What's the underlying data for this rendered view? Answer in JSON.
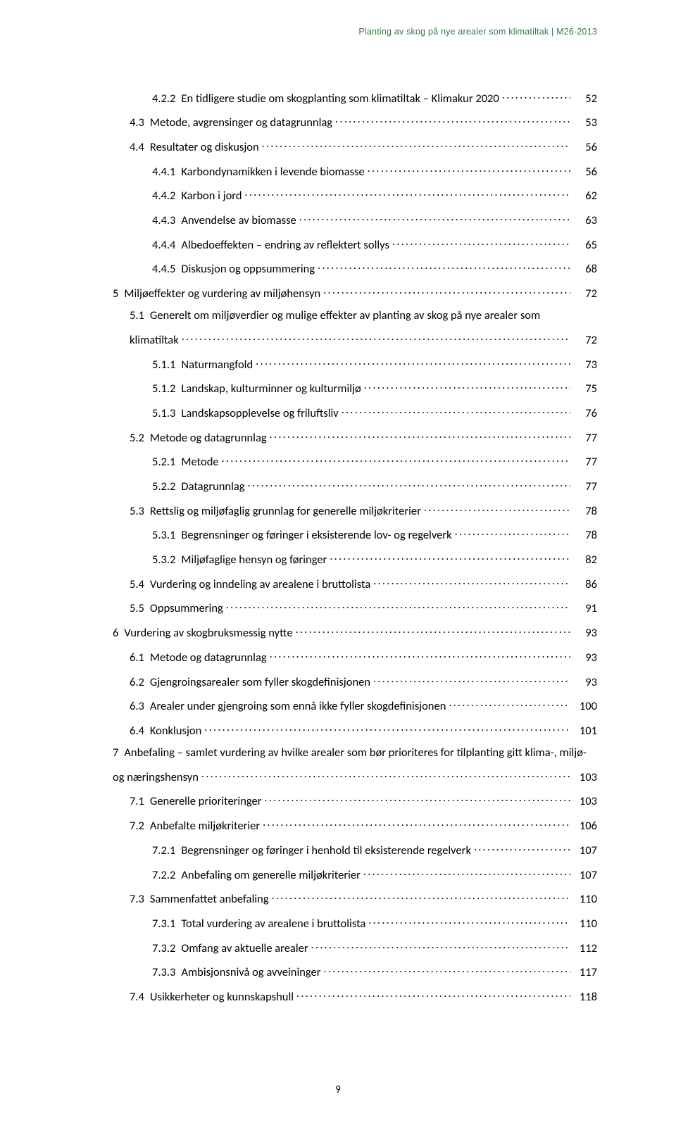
{
  "header": {
    "text": "Planting av skog på nye arealer som klimatiltak  |  M26-2013",
    "color": "#3a7840"
  },
  "pageNumber": "9",
  "colors": {
    "text": "#000000",
    "background": "#ffffff"
  },
  "toc": [
    {
      "lvl": 3,
      "num": "4.2.2",
      "title": "En tidligere studie om skogplanting som klimatiltak – Klimakur 2020",
      "page": "52"
    },
    {
      "lvl": 2,
      "num": "4.3",
      "title": "Metode, avgrensinger og datagrunnlag",
      "page": "53"
    },
    {
      "lvl": 2,
      "num": "4.4",
      "title": "Resultater og diskusjon",
      "page": "56"
    },
    {
      "lvl": 3,
      "num": "4.4.1",
      "title": "Karbondynamikken i levende biomasse",
      "page": "56"
    },
    {
      "lvl": 3,
      "num": "4.4.2",
      "title": "Karbon i jord",
      "page": "62"
    },
    {
      "lvl": 3,
      "num": "4.4.3",
      "title": "Anvendelse av biomasse",
      "page": "63"
    },
    {
      "lvl": 3,
      "num": "4.4.4",
      "title": "Albedoeffekten – endring av reflektert sollys",
      "page": "65"
    },
    {
      "lvl": 3,
      "num": "4.4.5",
      "title": "Diskusjon og oppsummering",
      "page": "68"
    },
    {
      "lvl": 1,
      "num": "5",
      "title": "Miljøeffekter og vurdering av miljøhensyn",
      "page": "72"
    },
    {
      "lvl": 2,
      "num": "5.1",
      "title": "Generelt om miljøverdier og mulige effekter av planting av skog på nye arealer som",
      "page": "",
      "wrap": true,
      "wrapTitle": "klimatiltak",
      "wrapPage": "72"
    },
    {
      "lvl": 3,
      "num": "5.1.1",
      "title": "Naturmangfold",
      "page": "73"
    },
    {
      "lvl": 3,
      "num": "5.1.2",
      "title": "Landskap, kulturminner og kulturmiljø",
      "page": "75"
    },
    {
      "lvl": 3,
      "num": "5.1.3",
      "title": "Landskapsopplevelse og friluftsliv",
      "page": "76"
    },
    {
      "lvl": 2,
      "num": "5.2",
      "title": "Metode og datagrunnlag",
      "page": "77"
    },
    {
      "lvl": 3,
      "num": "5.2.1",
      "title": "Metode",
      "page": "77"
    },
    {
      "lvl": 3,
      "num": "5.2.2",
      "title": "Datagrunnlag",
      "page": "77"
    },
    {
      "lvl": 2,
      "num": "5.3",
      "title": "Rettslig og miljøfaglig grunnlag for generelle miljøkriterier",
      "page": "78"
    },
    {
      "lvl": 3,
      "num": "5.3.1",
      "title": "Begrensninger og føringer i eksisterende lov- og regelverk",
      "page": "78"
    },
    {
      "lvl": 3,
      "num": "5.3.2",
      "title": "Miljøfaglige hensyn og føringer",
      "page": "82"
    },
    {
      "lvl": 2,
      "num": "5.4",
      "title": "Vurdering og inndeling av arealene i bruttolista",
      "page": "86"
    },
    {
      "lvl": 2,
      "num": "5.5",
      "title": "Oppsummering",
      "page": "91"
    },
    {
      "lvl": 1,
      "num": "6",
      "title": "Vurdering av skogbruksmessig nytte",
      "page": "93"
    },
    {
      "lvl": 2,
      "num": "6.1",
      "title": "Metode og datagrunnlag",
      "page": "93"
    },
    {
      "lvl": 2,
      "num": "6.2",
      "title": "Gjengroingsarealer som fyller skogdefinisjonen",
      "page": "93"
    },
    {
      "lvl": 2,
      "num": "6.3",
      "title": "Arealer under gjengroing som ennå ikke fyller skogdefinisjonen",
      "page": "100"
    },
    {
      "lvl": 2,
      "num": "6.4",
      "title": "Konklusjon",
      "page": "101"
    },
    {
      "lvl": 1,
      "num": "7",
      "title": "Anbefaling – samlet vurdering av hvilke arealer som bør prioriteres for tilplanting gitt klima-, miljø-",
      "page": "",
      "wrap": true,
      "wrapTitle": "og næringshensyn",
      "wrapPage": "103"
    },
    {
      "lvl": 2,
      "num": "7.1",
      "title": "Generelle prioriteringer",
      "page": "103"
    },
    {
      "lvl": 2,
      "num": "7.2",
      "title": "Anbefalte miljøkriterier",
      "page": "106"
    },
    {
      "lvl": 3,
      "num": "7.2.1",
      "title": "Begrensninger og føringer i henhold til eksisterende regelverk",
      "page": "107"
    },
    {
      "lvl": 3,
      "num": "7.2.2",
      "title": "Anbefaling om generelle miljøkriterier",
      "page": "107"
    },
    {
      "lvl": 2,
      "num": "7.3",
      "title": "Sammenfattet anbefaling",
      "page": "110"
    },
    {
      "lvl": 3,
      "num": "7.3.1",
      "title": "Total vurdering av arealene i bruttolista",
      "page": "110"
    },
    {
      "lvl": 3,
      "num": "7.3.2",
      "title": "Omfang av aktuelle arealer",
      "page": "112"
    },
    {
      "lvl": 3,
      "num": "7.3.3",
      "title": "Ambisjonsnivå og avveininger",
      "page": "117"
    },
    {
      "lvl": 2,
      "num": "7.4",
      "title": "Usikkerheter og kunnskapshull",
      "page": "118"
    }
  ]
}
